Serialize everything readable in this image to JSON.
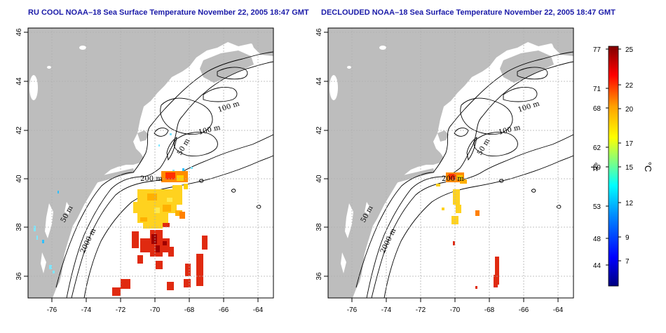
{
  "left_panel": {
    "title": "RU COOL NOAA–18 Sea Surface Temperature November 22, 2005 18:47 GMT",
    "xticks": [
      "-76",
      "-74",
      "-72",
      "-70",
      "-68",
      "-66",
      "-64"
    ],
    "yticks": [
      "36",
      "38",
      "40",
      "42",
      "44",
      "46"
    ],
    "contours": [
      "100 m",
      "100 m",
      "50 m",
      "200 m",
      "50 m",
      "2000 m"
    ]
  },
  "right_panel": {
    "title": "DECLOUDED NOAA–18 Sea Surface Temperature November 22, 2005 18:47 GMT",
    "xticks": [
      "-76",
      "-74",
      "-72",
      "-70",
      "-68",
      "-66",
      "-64"
    ],
    "yticks": [
      "36",
      "38",
      "40",
      "42",
      "44",
      "46"
    ],
    "contours": [
      "100 m",
      "100 m",
      "50 m",
      "200 m",
      "50 m",
      "2000 m"
    ]
  },
  "colorbar": {
    "fahrenheit_ticks": [
      "77",
      "71",
      "68",
      "62",
      "59",
      "53",
      "48",
      "44"
    ],
    "celsius_ticks": [
      "25",
      "22",
      "20",
      "17",
      "15",
      "12",
      "9",
      "7"
    ],
    "fahrenheit_unit": "°F",
    "celsius_unit": "°C",
    "colors": [
      "#000080",
      "#0000ff",
      "#0080ff",
      "#00ffff",
      "#80ff80",
      "#ffff00",
      "#ff8000",
      "#ff0000",
      "#800000"
    ]
  },
  "colors": {
    "land": "#bdbdbd",
    "ocean": "#ffffff",
    "title": "#1a1aa8",
    "grid": "#b0b0b0"
  }
}
